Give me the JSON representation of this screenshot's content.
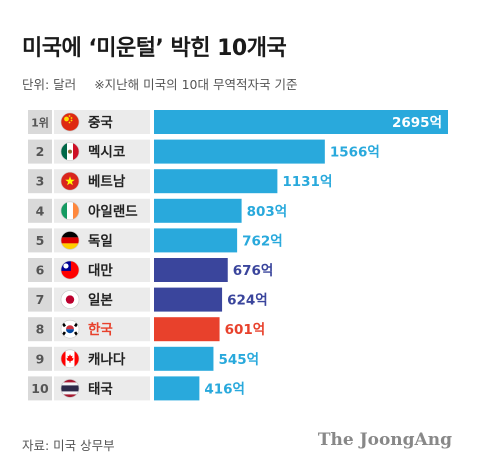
{
  "header": {
    "title": "미국에 ‘미운털’ 박힌 10개국",
    "unit": "단위: 달러",
    "note": "※지난해 미국의 10대 무역적자국 기준"
  },
  "footer": {
    "source": "자료: 미국 상무부",
    "brand": "The JoongAng"
  },
  "colors": {
    "default_bar": "#29a9dc",
    "asia_bar": "#3a459c",
    "korea_bar": "#e8412c",
    "rank_bg": "#d9d9d9",
    "label_bg": "#ebebeb",
    "korea_label": "#e8412c"
  },
  "chart_data": {
    "type": "bar",
    "orientation": "horizontal",
    "value_suffix": "억",
    "rank_first_suffix": "위",
    "categories": [
      "중국",
      "멕시코",
      "베트남",
      "아일랜드",
      "독일",
      "대만",
      "일본",
      "한국",
      "캐나다",
      "태국"
    ],
    "values": [
      2695,
      1566,
      1131,
      803,
      762,
      676,
      624,
      601,
      545,
      416
    ],
    "ranks": [
      "1",
      "2",
      "3",
      "4",
      "5",
      "6",
      "7",
      "8",
      "9",
      "10"
    ],
    "flags": [
      "china-flag-icon",
      "mexico-flag-icon",
      "vietnam-flag-icon",
      "ireland-flag-icon",
      "germany-flag-icon",
      "taiwan-flag-icon",
      "japan-flag-icon",
      "korea-flag-icon",
      "canada-flag-icon",
      "thailand-flag-icon"
    ],
    "bar_color_keys": [
      "default_bar",
      "default_bar",
      "default_bar",
      "default_bar",
      "default_bar",
      "asia_bar",
      "asia_bar",
      "korea_bar",
      "default_bar",
      "default_bar"
    ],
    "xlim": [
      0,
      2695
    ]
  }
}
